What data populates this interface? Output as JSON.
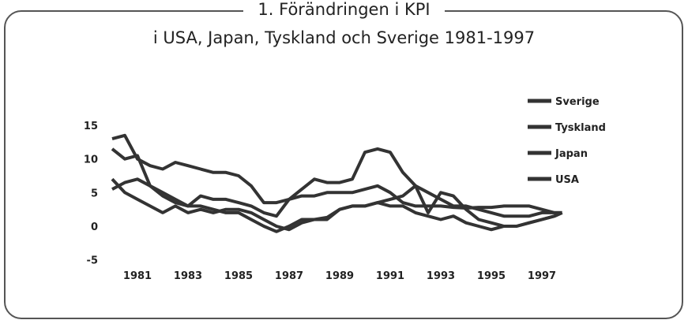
{
  "chart_data": {
    "type": "line",
    "title": "1. Förändringen i KPI",
    "subtitle": "i USA, Japan, Tyskland och Sverige 1981-1997",
    "xlabel": "",
    "ylabel": "",
    "xlim": [
      1980,
      1998
    ],
    "ylim": [
      -5,
      15
    ],
    "yticks": [
      15,
      10,
      5,
      0,
      -5
    ],
    "xticks": [
      1981,
      1983,
      1985,
      1987,
      1989,
      1991,
      1993,
      1995,
      1997
    ],
    "legend_position": "right",
    "x": [
      1980,
      1980.5,
      1981,
      1981.5,
      1982,
      1982.5,
      1983,
      1983.5,
      1984,
      1984.5,
      1985,
      1985.5,
      1986,
      1986.5,
      1987,
      1987.5,
      1988,
      1988.5,
      1989,
      1989.5,
      1990,
      1990.5,
      1991,
      1991.5,
      1992,
      1992.5,
      1993,
      1993.5,
      1994,
      1994.5,
      1995,
      1995.5,
      1996,
      1996.5,
      1997,
      1997.5,
      1997.8
    ],
    "series": [
      {
        "name": "Sverige",
        "color": "#333333",
        "values": [
          13,
          13.5,
          10,
          9,
          8.5,
          9.5,
          9,
          8.5,
          8,
          8,
          7.5,
          6,
          3.5,
          3.5,
          4,
          5.5,
          7,
          6.5,
          6.5,
          7,
          11,
          11.5,
          11,
          8,
          6,
          2,
          5,
          4.5,
          2.5,
          1,
          0.5,
          0,
          0,
          0.5,
          1,
          1.5,
          2
        ]
      },
      {
        "name": "Tyskland",
        "color": "#333333",
        "values": [
          5.5,
          6.5,
          7,
          6,
          4.5,
          3.5,
          3,
          3,
          2.5,
          2,
          2,
          1,
          0,
          -0.8,
          0,
          1,
          1,
          1.3,
          2.5,
          3,
          3,
          3.5,
          4,
          4.5,
          6,
          5,
          4,
          3,
          3,
          2.5,
          2,
          1.5,
          1.5,
          1.5,
          2,
          2,
          2
        ]
      },
      {
        "name": "Japan",
        "color": "#333333",
        "values": [
          7,
          5,
          4,
          3,
          2,
          3,
          2,
          2.5,
          2,
          2.5,
          2.5,
          2,
          1,
          0,
          -0.5,
          0.5,
          1,
          1,
          2.5,
          3,
          3,
          3.5,
          3,
          3,
          2,
          1.5,
          1,
          1.5,
          0.5,
          0,
          -0.5,
          0,
          0,
          0.5,
          1,
          1.5,
          2
        ]
      },
      {
        "name": "USA",
        "color": "#333333",
        "values": [
          11.5,
          10,
          10.5,
          6,
          5,
          4,
          3,
          4.5,
          4,
          4,
          3.5,
          3,
          2,
          1.5,
          4,
          4.5,
          4.5,
          5,
          5,
          5,
          5.5,
          6,
          5,
          3.5,
          3,
          3,
          3,
          2.8,
          2.7,
          2.8,
          2.8,
          3,
          3,
          3,
          2.5,
          2,
          2
        ]
      }
    ]
  }
}
